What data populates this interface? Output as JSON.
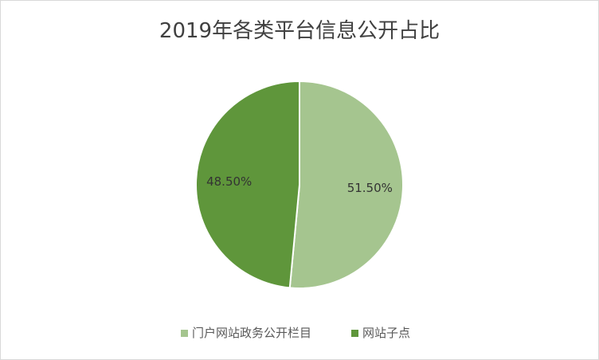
{
  "chart_data": {
    "type": "pie",
    "title": "2019年各类平台信息公开占比",
    "categories": [
      "门户网站政务公开栏目",
      "网站子点"
    ],
    "values": [
      51.5,
      48.5
    ],
    "data_labels": [
      "51.50%",
      "48.50%"
    ],
    "colors": [
      "#a5c58f",
      "#5f963b"
    ],
    "legend": "bottom"
  }
}
